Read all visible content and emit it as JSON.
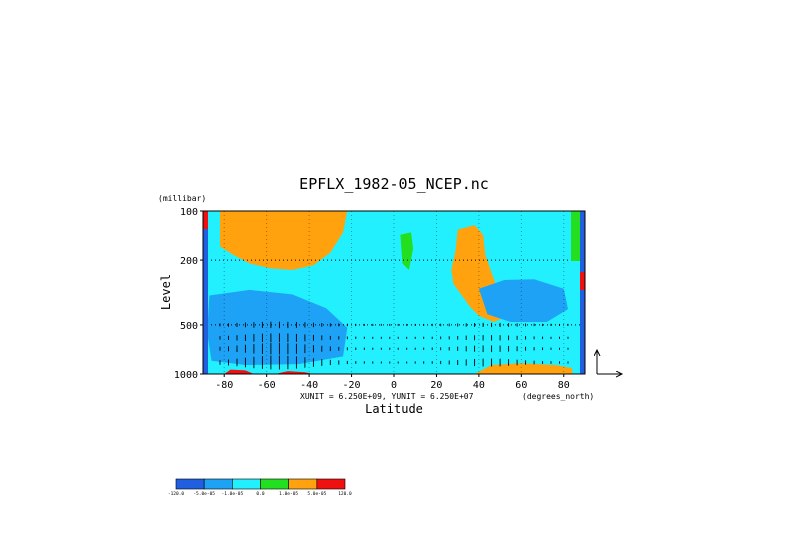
{
  "chart_data": {
    "type": "heatmap",
    "title": "EPFLX_1982-05_NCEP.nc",
    "xlabel": "Latitude",
    "ylabel": "Level",
    "y_unit": "(millibar)",
    "x_unit": "(degrees_north)",
    "vector_units": "XUNIT = 6.250E+09, YUNIT = 6.250E+07",
    "xlim": [
      -90,
      90
    ],
    "ylim": [
      1000,
      100
    ],
    "y_scale": "log",
    "x_ticks": [
      -80,
      -60,
      -40,
      -20,
      0,
      20,
      40,
      60,
      80
    ],
    "y_ticks": [
      100,
      200,
      500,
      1000
    ],
    "grid": true,
    "levels": [
      -120.0,
      -5e-05,
      -1e-05,
      0.0,
      1e-05,
      5e-05,
      120.0
    ],
    "colorbar_labels": [
      "-120.0",
      "-5.0e-05",
      "-1.0e-05",
      "0.0",
      "1.0e-05",
      "5.0e-05",
      "120.0"
    ],
    "colors": [
      "#1f5fe0",
      "#1ea2f5",
      "#22f0ff",
      "#22e020",
      "#ffa20e",
      "#f01010"
    ],
    "contour_regions": [
      {
        "level_index": 4,
        "points": [
          [
            -82,
            100
          ],
          [
            -22,
            100
          ],
          [
            -24,
            135
          ],
          [
            -30,
            180
          ],
          [
            -38,
            215
          ],
          [
            -48,
            230
          ],
          [
            -58,
            225
          ],
          [
            -68,
            210
          ],
          [
            -76,
            185
          ],
          [
            -82,
            165
          ]
        ]
      },
      {
        "level_index": 4,
        "points": [
          [
            30,
            130
          ],
          [
            38,
            122
          ],
          [
            42,
            140
          ],
          [
            43,
            185
          ],
          [
            46,
            240
          ],
          [
            50,
            330
          ],
          [
            52,
            450
          ],
          [
            47,
            480
          ],
          [
            40,
            440
          ],
          [
            36,
            390
          ],
          [
            32,
            330
          ],
          [
            28,
            280
          ],
          [
            27,
            230
          ],
          [
            29,
            175
          ]
        ]
      },
      {
        "level_index": 3,
        "points": [
          [
            3,
            140
          ],
          [
            8,
            135
          ],
          [
            9,
            170
          ],
          [
            7,
            230
          ],
          [
            4,
            210
          ]
        ]
      },
      {
        "level_index": 1,
        "points": [
          [
            -87,
            330
          ],
          [
            -68,
            305
          ],
          [
            -48,
            325
          ],
          [
            -32,
            395
          ],
          [
            -22,
            520
          ],
          [
            -24,
            780
          ],
          [
            -45,
            870
          ],
          [
            -70,
            880
          ],
          [
            -86,
            830
          ],
          [
            -88,
            560
          ]
        ]
      },
      {
        "level_index": 1,
        "points": [
          [
            40,
            300
          ],
          [
            52,
            265
          ],
          [
            66,
            262
          ],
          [
            80,
            300
          ],
          [
            82,
            400
          ],
          [
            72,
            480
          ],
          [
            55,
            480
          ],
          [
            44,
            430
          ]
        ]
      },
      {
        "level_index": 4,
        "points": [
          [
            38,
            1000
          ],
          [
            46,
            880
          ],
          [
            60,
            860
          ],
          [
            76,
            880
          ],
          [
            84,
            920
          ],
          [
            84,
            1000
          ]
        ]
      },
      {
        "level_index": 5,
        "points": [
          [
            -80,
            1000
          ],
          [
            -77,
            940
          ],
          [
            -70,
            950
          ],
          [
            -66,
            1000
          ]
        ]
      },
      {
        "level_index": 5,
        "points": [
          [
            -56,
            1000
          ],
          [
            -50,
            960
          ],
          [
            -42,
            975
          ],
          [
            -38,
            1000
          ]
        ]
      }
    ]
  },
  "colorbar": {
    "labels": [
      "-120.0",
      "-5.0e-05",
      "-1.0e-05",
      "0.0",
      "1.0e-05",
      "5.0e-05",
      "120.0"
    ]
  }
}
